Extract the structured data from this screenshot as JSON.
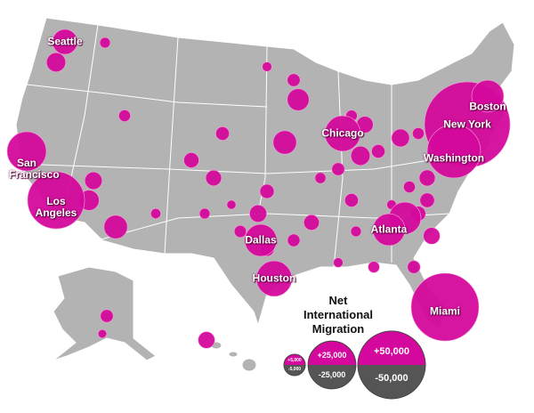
{
  "map": {
    "legend": {
      "title": "Net International Migration",
      "sizes": [
        {
          "positive": {
            "value": 5000,
            "label": "+5,000"
          },
          "negative": {
            "value": -5000,
            "label": "-5,000"
          }
        },
        {
          "positive": {
            "value": 25000,
            "label": "+25,000"
          },
          "negative": {
            "value": -25000,
            "label": "-25,000"
          }
        },
        {
          "positive": {
            "value": 50000,
            "label": "+50,000"
          },
          "negative": {
            "value": -50000,
            "label": "-50,000"
          }
        }
      ]
    },
    "cities": [
      {
        "label": "Seattle",
        "value": 6800
      },
      {
        "label": "San Francisco",
        "value": 16800
      },
      {
        "label": "Los Angeles",
        "value": 35500
      },
      {
        "label": "Chicago",
        "value": 13800
      },
      {
        "label": "Boston",
        "value": 11200
      },
      {
        "label": "New York",
        "value": 80000
      },
      {
        "label": "Washington",
        "value": 31000
      },
      {
        "label": "Dallas",
        "value": 11200
      },
      {
        "label": "Houston",
        "value": 13800
      },
      {
        "label": "Atlanta",
        "value": 11200
      },
      {
        "label": "Miami",
        "value": 50000
      }
    ],
    "other_bubbles": [
      4000,
      3300,
      6000,
      1200,
      1500,
      2500,
      4500,
      1800,
      2200,
      5200,
      3000,
      2000,
      3500,
      1500,
      2800,
      1000,
      4000,
      2400,
      1800,
      1300,
      6000,
      3200,
      2600,
      1700,
      1200,
      2000,
      11200,
      1500,
      2300,
      3000,
      1800,
      1400,
      1000,
      2200,
      1600,
      900,
      1200,
      2700,
      2000,
      1100,
      1800,
      3000,
      800,
      1000,
      1400
    ]
  }
}
